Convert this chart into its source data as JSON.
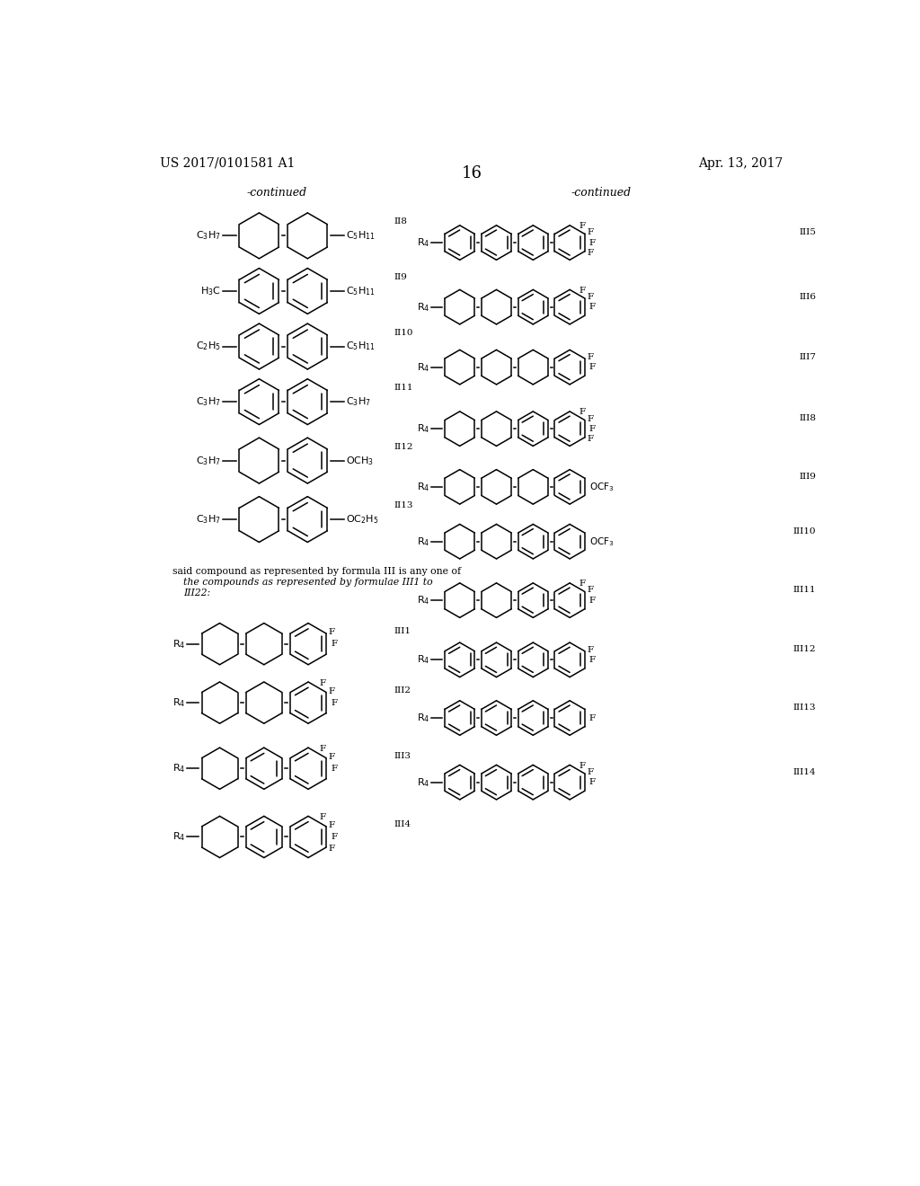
{
  "page_header_left": "US 2017/0101581 A1",
  "page_header_right": "Apr. 13, 2017",
  "page_number": "16",
  "background_color": "#ffffff",
  "text_color": "#000000",
  "line_color": "#000000",
  "continued_label": "-continued"
}
